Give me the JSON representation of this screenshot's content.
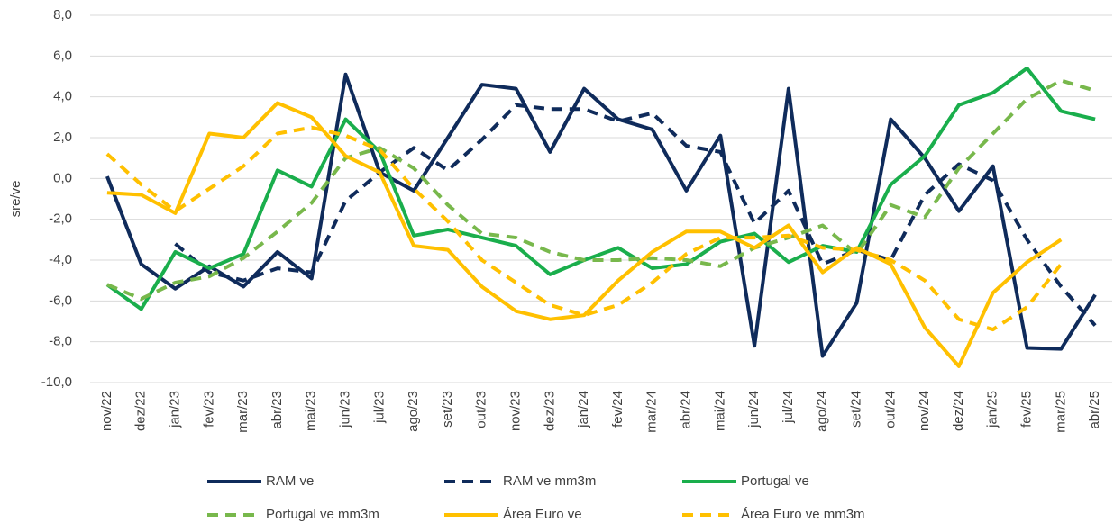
{
  "chart_data": {
    "type": "line",
    "y_label": "sre/ve",
    "categories": [
      "nov/22",
      "dez/22",
      "jan/23",
      "fev/23",
      "mar/23",
      "abr/23",
      "mai/23",
      "jun/23",
      "jul/23",
      "ago/23",
      "set/23",
      "out/23",
      "nov/23",
      "dez/23",
      "jan/24",
      "fev/24",
      "mar/24",
      "abr/24",
      "mai/24",
      "jun/24",
      "jul/24",
      "ago/24",
      "set/24",
      "out/24",
      "nov/24",
      "dez/24",
      "jan/25",
      "fev/25",
      "mar/25",
      "abr/25"
    ],
    "ylim": [
      -10,
      8
    ],
    "yticks": [
      {
        "value": -10,
        "label": "-10,0"
      },
      {
        "value": -8,
        "label": "-8,0"
      },
      {
        "value": -6,
        "label": "-6,0"
      },
      {
        "value": -4,
        "label": "-4,0"
      },
      {
        "value": -2,
        "label": "-2,0"
      },
      {
        "value": 0,
        "label": "0,0"
      },
      {
        "value": 2,
        "label": "2,0"
      },
      {
        "value": 4,
        "label": "4,0"
      },
      {
        "value": 6,
        "label": "6,0"
      },
      {
        "value": 8,
        "label": "8,0"
      }
    ],
    "grid": true,
    "series": [
      {
        "name": "RAM ve",
        "color": "#0f2b5b",
        "dashed": false,
        "values": [
          0.1,
          -4.2,
          -5.4,
          -4.3,
          -5.3,
          -3.6,
          -4.9,
          5.1,
          0.3,
          -0.6,
          2.0,
          4.6,
          4.4,
          1.3,
          4.4,
          2.9,
          2.4,
          -0.6,
          2.1,
          -8.2,
          4.4,
          -8.7,
          -6.1,
          2.9,
          1.0,
          -1.6,
          0.6,
          -8.3,
          -8.35,
          -5.7
        ]
      },
      {
        "name": "RAM ve mm3m",
        "color": "#0f2b5b",
        "dashed": true,
        "values": [
          null,
          null,
          -3.2,
          -4.6,
          -5.0,
          -4.4,
          -4.6,
          -1.1,
          0.3,
          1.5,
          0.4,
          1.9,
          3.6,
          3.4,
          3.4,
          2.8,
          3.2,
          1.6,
          1.3,
          -2.2,
          -0.6,
          -4.2,
          -3.5,
          -4.0,
          -0.8,
          0.7,
          -0.1,
          -3.0,
          -5.3,
          -7.2
        ]
      },
      {
        "name": "Portugal ve",
        "color": "#1aae4c",
        "dashed": false,
        "values": [
          -5.2,
          -6.4,
          -3.6,
          -4.4,
          -3.7,
          0.4,
          -0.4,
          2.9,
          1.3,
          -2.8,
          -2.5,
          -2.9,
          -3.3,
          -4.7,
          -4.0,
          -3.4,
          -4.4,
          -4.2,
          -3.1,
          -2.7,
          -4.1,
          -3.3,
          -3.6,
          -0.3,
          1.1,
          3.6,
          4.2,
          5.4,
          3.3,
          2.9
        ]
      },
      {
        "name": "Portugal ve mm3m",
        "color": "#78b84c",
        "dashed": true,
        "values": [
          -5.2,
          -5.9,
          -5.1,
          -4.8,
          -3.9,
          -2.6,
          -1.2,
          1.0,
          1.5,
          0.5,
          -1.3,
          -2.7,
          -2.9,
          -3.6,
          -4.0,
          -4.0,
          -3.9,
          -4.0,
          -4.3,
          -3.4,
          -2.9,
          -2.3,
          -3.7,
          -1.3,
          -1.9,
          0.5,
          2.2,
          3.9,
          4.8,
          4.3
        ]
      },
      {
        "name": "Área Euro ve",
        "color": "#ffc000",
        "dashed": false,
        "values": [
          -0.7,
          -0.8,
          -1.7,
          2.2,
          2.0,
          3.7,
          3.0,
          1.1,
          0.3,
          -3.3,
          -3.5,
          -5.3,
          -6.5,
          -6.9,
          -6.7,
          -5.0,
          -3.6,
          -2.6,
          -2.6,
          -3.4,
          -2.3,
          -4.6,
          -3.4,
          -4.2,
          -7.3,
          -9.2,
          -5.6,
          -4.1,
          -3.0,
          null
        ]
      },
      {
        "name": "Área Euro ve mm3m",
        "color": "#ffc000",
        "dashed": true,
        "values": [
          1.2,
          -0.3,
          -1.6,
          -0.5,
          0.6,
          2.2,
          2.5,
          2.1,
          1.4,
          -0.5,
          -2.1,
          -4.0,
          -5.1,
          -6.2,
          -6.7,
          -6.2,
          -5.1,
          -3.7,
          -2.9,
          -2.9,
          -2.8,
          -3.4,
          -3.5,
          -4.0,
          -5.0,
          -6.9,
          -7.4,
          -6.3,
          -4.2,
          null
        ]
      }
    ]
  }
}
